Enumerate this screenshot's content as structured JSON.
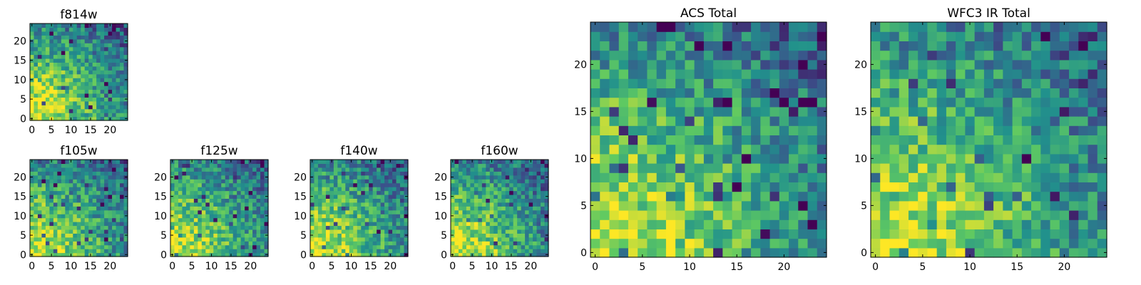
{
  "chart_data": [
    {
      "id": "f814w",
      "type": "heatmap",
      "title": "f814w",
      "size": 25,
      "xticks": [
        "0",
        "5",
        "10",
        "15",
        "20"
      ],
      "xtick_values": [
        0,
        5,
        10,
        15,
        20
      ],
      "yticks": [
        "0",
        "5",
        "10",
        "15",
        "20"
      ],
      "ytick_values": [
        0,
        5,
        10,
        15,
        20
      ],
      "trend": "bright lower-left",
      "seed": 11
    },
    {
      "id": "f105w",
      "type": "heatmap",
      "title": "f105w",
      "size": 25,
      "xticks": [
        "0",
        "5",
        "10",
        "15",
        "20"
      ],
      "xtick_values": [
        0,
        5,
        10,
        15,
        20
      ],
      "yticks": [
        "0",
        "5",
        "10",
        "15",
        "20"
      ],
      "ytick_values": [
        0,
        5,
        10,
        15,
        20
      ],
      "trend": "bright lower-left",
      "seed": 23
    },
    {
      "id": "f125w",
      "type": "heatmap",
      "title": "f125w",
      "size": 25,
      "xticks": [
        "0",
        "5",
        "10",
        "15",
        "20"
      ],
      "xtick_values": [
        0,
        5,
        10,
        15,
        20
      ],
      "yticks": [
        "0",
        "5",
        "10",
        "15",
        "20"
      ],
      "ytick_values": [
        0,
        5,
        10,
        15,
        20
      ],
      "trend": "bright lower-left",
      "seed": 37
    },
    {
      "id": "f140w",
      "type": "heatmap",
      "title": "f140w",
      "size": 25,
      "xticks": [
        "0",
        "5",
        "10",
        "15",
        "20"
      ],
      "xtick_values": [
        0,
        5,
        10,
        15,
        20
      ],
      "yticks": [
        "0",
        "5",
        "10",
        "15",
        "20"
      ],
      "ytick_values": [
        0,
        5,
        10,
        15,
        20
      ],
      "trend": "bright lower-left",
      "seed": 41
    },
    {
      "id": "f160w",
      "type": "heatmap",
      "title": "f160w",
      "size": 25,
      "xticks": [
        "0",
        "5",
        "10",
        "15",
        "20"
      ],
      "xtick_values": [
        0,
        5,
        10,
        15,
        20
      ],
      "yticks": [
        "0",
        "5",
        "10",
        "15",
        "20"
      ],
      "ytick_values": [
        0,
        5,
        10,
        15,
        20
      ],
      "trend": "bright lower-left",
      "seed": 53
    },
    {
      "id": "acs-total",
      "type": "heatmap",
      "title": "ACS Total",
      "size": 25,
      "xticks": [
        "0",
        "5",
        "10",
        "15",
        "20"
      ],
      "xtick_values": [
        0,
        5,
        10,
        15,
        20
      ],
      "yticks": [
        "0",
        "5",
        "10",
        "15",
        "20"
      ],
      "ytick_values": [
        0,
        5,
        10,
        15,
        20
      ],
      "trend": "bright lower-left",
      "seed": 67
    },
    {
      "id": "wfc3-ir-total",
      "type": "heatmap",
      "title": "WFC3 IR Total",
      "size": 25,
      "xticks": [
        "0",
        "5",
        "10",
        "15",
        "20"
      ],
      "xtick_values": [
        0,
        5,
        10,
        15,
        20
      ],
      "yticks": [
        "0",
        "5",
        "10",
        "15",
        "20"
      ],
      "ytick_values": [
        0,
        5,
        10,
        15,
        20
      ],
      "trend": "bright lower-left",
      "seed": 79
    }
  ],
  "colormap": {
    "name": "viridis",
    "stops": [
      "#440154",
      "#3b528b",
      "#21918c",
      "#5ec962",
      "#fde725"
    ]
  }
}
